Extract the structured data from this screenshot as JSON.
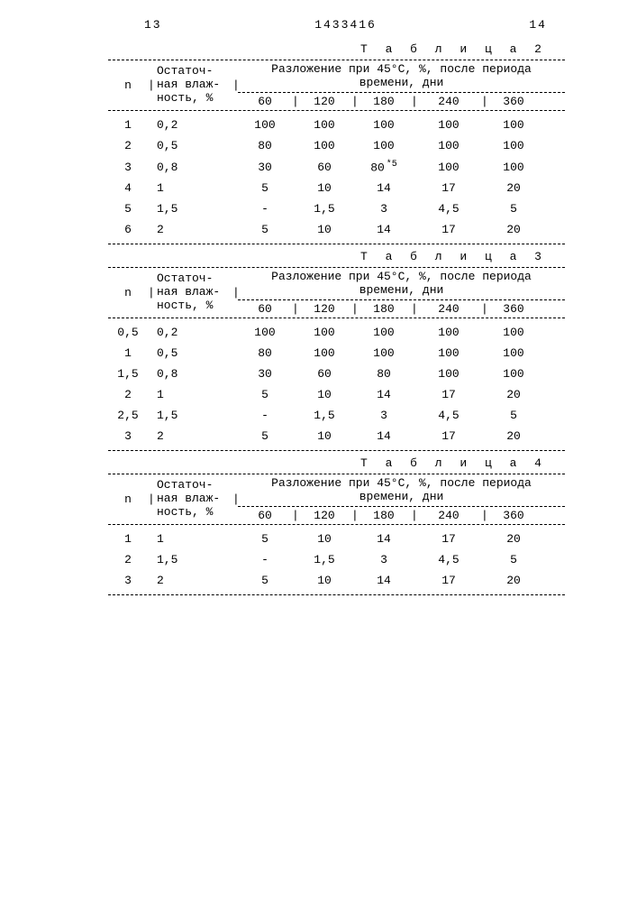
{
  "page": {
    "left_num": "13",
    "doc_num": "1433416",
    "right_num": "14"
  },
  "table2": {
    "title": "Т а б л и ц а  2",
    "col_n": "n",
    "col_h1": "Остаточ-",
    "col_h2": "ная влаж-",
    "col_h3": "ность, %",
    "span_l1": "Разложение при 45°С, %, после периода",
    "span_l2": "времени, дни",
    "days": [
      "60",
      "120",
      "180",
      "240",
      "360"
    ],
    "rows": [
      {
        "n": "1",
        "h": "0,2",
        "v": [
          "100",
          "100",
          "100",
          "100",
          "100"
        ]
      },
      {
        "n": "2",
        "h": "0,5",
        "v": [
          "80",
          "100",
          "100",
          "100",
          "100"
        ],
        "note3": "*"
      },
      {
        "n": "3",
        "h": "0,8",
        "v": [
          "30",
          "60",
          "80",
          "100",
          "100"
        ],
        "note2": "*5",
        "note3": "*"
      },
      {
        "n": "4",
        "h": "1",
        "v": [
          "5",
          "10",
          "14",
          "17",
          "20"
        ]
      },
      {
        "n": "5",
        "h": "1,5",
        "v": [
          "-",
          "1,5",
          "3",
          "4,5",
          "5"
        ]
      },
      {
        "n": "6",
        "h": "2",
        "v": [
          "5",
          "10",
          "14",
          "17",
          "20"
        ]
      }
    ]
  },
  "table3": {
    "title": "Т а б л и ц а  3",
    "col_n": "n",
    "col_h1": "Остаточ-",
    "col_h2": "ная влаж-",
    "col_h3": "ность, %",
    "span_l1": "Разложение при 45°С, %, после периода",
    "span_l2": "времени, дни",
    "days": [
      "60",
      "120",
      "180",
      "240",
      "360"
    ],
    "rows": [
      {
        "n": "0,5",
        "h": "0,2",
        "v": [
          "100",
          "100",
          "100",
          "100",
          "100"
        ]
      },
      {
        "n": "1",
        "h": "0,5",
        "v": [
          "80",
          "100",
          "100",
          "100",
          "100"
        ]
      },
      {
        "n": "1,5",
        "h": "0,8",
        "v": [
          "30",
          "60",
          "80",
          "100",
          "100"
        ]
      },
      {
        "n": "2",
        "h": "1",
        "v": [
          "5",
          "10",
          "14",
          "17",
          "20"
        ]
      },
      {
        "n": "2,5",
        "h": "1,5",
        "v": [
          "-",
          "1,5",
          "3",
          "4,5",
          "5"
        ]
      },
      {
        "n": "3",
        "h": "2",
        "v": [
          "5",
          "10",
          "14",
          "17",
          "20"
        ]
      }
    ]
  },
  "table4": {
    "title": "Т а б л и ц а  4",
    "col_n": "n",
    "col_h1": "Остаточ-",
    "col_h2": "ная влаж-",
    "col_h3": "ность, %",
    "span_l1": "Разложение при 45°С, %, после периода",
    "span_l2": "времени, дни",
    "days": [
      "60",
      "120",
      "180",
      "240",
      "360"
    ],
    "rows": [
      {
        "n": "1",
        "h": "1",
        "v": [
          "5",
          "10",
          "14",
          "17",
          "20"
        ]
      },
      {
        "n": "2",
        "h": "1,5",
        "v": [
          "-",
          "1,5",
          "3",
          "4,5",
          "5"
        ]
      },
      {
        "n": "3",
        "h": "2",
        "v": [
          "5",
          "10",
          "14",
          "17",
          "20"
        ]
      }
    ]
  }
}
